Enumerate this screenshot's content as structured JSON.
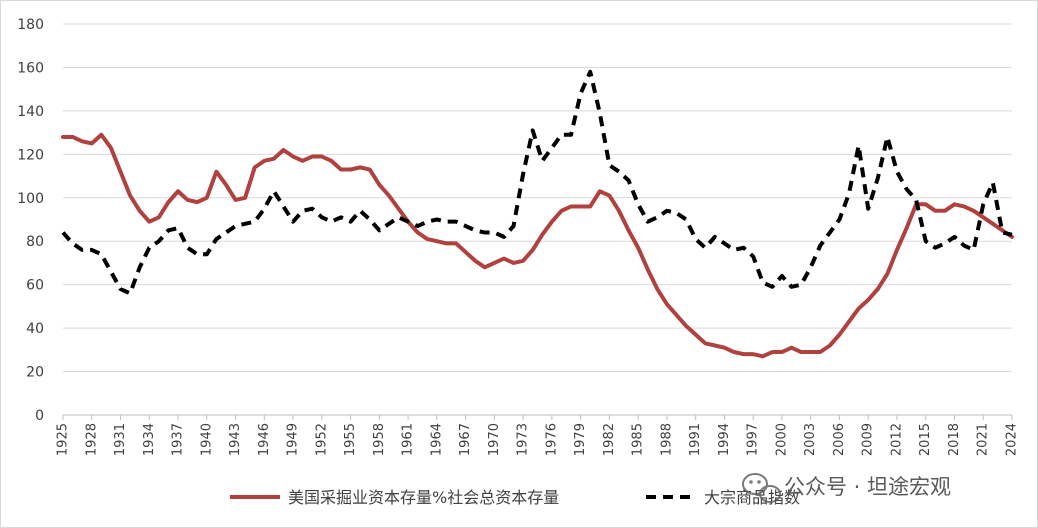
{
  "chart_data": {
    "type": "line",
    "title": "",
    "xlabel": "",
    "ylabel": "",
    "ylim": [
      0,
      180
    ],
    "yticks": [
      0,
      20,
      40,
      60,
      80,
      100,
      120,
      140,
      160,
      180
    ],
    "xlim": [
      1925,
      2024
    ],
    "xticks": [
      1925,
      1928,
      1931,
      1934,
      1937,
      1940,
      1943,
      1946,
      1949,
      1952,
      1955,
      1958,
      1961,
      1964,
      1967,
      1970,
      1973,
      1976,
      1979,
      1982,
      1985,
      1988,
      1991,
      1994,
      1997,
      2000,
      2003,
      2006,
      2009,
      2012,
      2015,
      2018,
      2021,
      2024
    ],
    "grid": "horizontal",
    "legend_position": "bottom",
    "series": [
      {
        "name": "美国采掘业资本存量%社会总资本存量",
        "color": "#b0413e",
        "style": "solid",
        "points": [
          [
            1925,
            128
          ],
          [
            1926,
            128
          ],
          [
            1927,
            126
          ],
          [
            1928,
            125
          ],
          [
            1929,
            129
          ],
          [
            1930,
            123
          ],
          [
            1931,
            112
          ],
          [
            1932,
            101
          ],
          [
            1933,
            94
          ],
          [
            1934,
            89
          ],
          [
            1935,
            91
          ],
          [
            1936,
            98
          ],
          [
            1937,
            103
          ],
          [
            1938,
            99
          ],
          [
            1939,
            98
          ],
          [
            1940,
            100
          ],
          [
            1941,
            112
          ],
          [
            1942,
            106
          ],
          [
            1943,
            99
          ],
          [
            1944,
            100
          ],
          [
            1945,
            114
          ],
          [
            1946,
            117
          ],
          [
            1947,
            118
          ],
          [
            1948,
            122
          ],
          [
            1949,
            119
          ],
          [
            1950,
            117
          ],
          [
            1951,
            119
          ],
          [
            1952,
            119
          ],
          [
            1953,
            117
          ],
          [
            1954,
            113
          ],
          [
            1955,
            113
          ],
          [
            1956,
            114
          ],
          [
            1957,
            113
          ],
          [
            1958,
            106
          ],
          [
            1959,
            101
          ],
          [
            1960,
            95
          ],
          [
            1961,
            89
          ],
          [
            1962,
            84
          ],
          [
            1963,
            81
          ],
          [
            1964,
            80
          ],
          [
            1965,
            79
          ],
          [
            1966,
            79
          ],
          [
            1967,
            75
          ],
          [
            1968,
            71
          ],
          [
            1969,
            68
          ],
          [
            1970,
            70
          ],
          [
            1971,
            72
          ],
          [
            1972,
            70
          ],
          [
            1973,
            71
          ],
          [
            1974,
            76
          ],
          [
            1975,
            83
          ],
          [
            1976,
            89
          ],
          [
            1977,
            94
          ],
          [
            1978,
            96
          ],
          [
            1979,
            96
          ],
          [
            1980,
            96
          ],
          [
            1981,
            103
          ],
          [
            1982,
            101
          ],
          [
            1983,
            94
          ],
          [
            1984,
            85
          ],
          [
            1985,
            77
          ],
          [
            1986,
            67
          ],
          [
            1987,
            58
          ],
          [
            1988,
            51
          ],
          [
            1989,
            46
          ],
          [
            1990,
            41
          ],
          [
            1991,
            37
          ],
          [
            1992,
            33
          ],
          [
            1993,
            32
          ],
          [
            1994,
            31
          ],
          [
            1995,
            29
          ],
          [
            1996,
            28
          ],
          [
            1997,
            28
          ],
          [
            1998,
            27
          ],
          [
            1999,
            29
          ],
          [
            2000,
            29
          ],
          [
            2001,
            31
          ],
          [
            2002,
            29
          ],
          [
            2003,
            29
          ],
          [
            2004,
            29
          ],
          [
            2005,
            32
          ],
          [
            2006,
            37
          ],
          [
            2007,
            43
          ],
          [
            2008,
            49
          ],
          [
            2009,
            53
          ],
          [
            2010,
            58
          ],
          [
            2011,
            65
          ],
          [
            2012,
            76
          ],
          [
            2013,
            86
          ],
          [
            2014,
            97
          ],
          [
            2015,
            97
          ],
          [
            2016,
            94
          ],
          [
            2017,
            94
          ],
          [
            2018,
            97
          ],
          [
            2019,
            96
          ],
          [
            2020,
            94
          ],
          [
            2021,
            91
          ],
          [
            2022,
            88
          ],
          [
            2023,
            85
          ],
          [
            2024,
            82
          ]
        ]
      },
      {
        "name": "大宗商品指数",
        "color": "#000000",
        "style": "dashed",
        "points": [
          [
            1925,
            84
          ],
          [
            1926,
            79
          ],
          [
            1927,
            76
          ],
          [
            1928,
            76
          ],
          [
            1929,
            74
          ],
          [
            1930,
            66
          ],
          [
            1931,
            58
          ],
          [
            1932,
            56
          ],
          [
            1933,
            68
          ],
          [
            1934,
            77
          ],
          [
            1935,
            80
          ],
          [
            1936,
            85
          ],
          [
            1937,
            86
          ],
          [
            1938,
            77
          ],
          [
            1939,
            74
          ],
          [
            1940,
            74
          ],
          [
            1941,
            81
          ],
          [
            1942,
            84
          ],
          [
            1943,
            87
          ],
          [
            1944,
            88
          ],
          [
            1945,
            89
          ],
          [
            1946,
            95
          ],
          [
            1947,
            103
          ],
          [
            1948,
            96
          ],
          [
            1949,
            89
          ],
          [
            1950,
            94
          ],
          [
            1951,
            95
          ],
          [
            1952,
            91
          ],
          [
            1953,
            89
          ],
          [
            1954,
            91
          ],
          [
            1955,
            89
          ],
          [
            1956,
            94
          ],
          [
            1957,
            90
          ],
          [
            1958,
            85
          ],
          [
            1959,
            88
          ],
          [
            1960,
            91
          ],
          [
            1961,
            89
          ],
          [
            1962,
            87
          ],
          [
            1963,
            89
          ],
          [
            1964,
            90
          ],
          [
            1965,
            89
          ],
          [
            1966,
            89
          ],
          [
            1967,
            87
          ],
          [
            1968,
            85
          ],
          [
            1969,
            84
          ],
          [
            1970,
            84
          ],
          [
            1971,
            82
          ],
          [
            1972,
            87
          ],
          [
            1973,
            111
          ],
          [
            1974,
            131
          ],
          [
            1975,
            117
          ],
          [
            1976,
            123
          ],
          [
            1977,
            129
          ],
          [
            1978,
            129
          ],
          [
            1979,
            148
          ],
          [
            1980,
            158
          ],
          [
            1981,
            139
          ],
          [
            1982,
            115
          ],
          [
            1983,
            112
          ],
          [
            1984,
            108
          ],
          [
            1985,
            97
          ],
          [
            1986,
            89
          ],
          [
            1987,
            91
          ],
          [
            1988,
            94
          ],
          [
            1989,
            93
          ],
          [
            1990,
            90
          ],
          [
            1991,
            81
          ],
          [
            1992,
            77
          ],
          [
            1993,
            82
          ],
          [
            1994,
            79
          ],
          [
            1995,
            76
          ],
          [
            1996,
            77
          ],
          [
            1997,
            73
          ],
          [
            1998,
            61
          ],
          [
            1999,
            59
          ],
          [
            2000,
            64
          ],
          [
            2001,
            59
          ],
          [
            2002,
            60
          ],
          [
            2003,
            68
          ],
          [
            2004,
            78
          ],
          [
            2005,
            84
          ],
          [
            2006,
            90
          ],
          [
            2007,
            102
          ],
          [
            2008,
            124
          ],
          [
            2009,
            95
          ],
          [
            2010,
            109
          ],
          [
            2011,
            128
          ],
          [
            2012,
            112
          ],
          [
            2013,
            104
          ],
          [
            2014,
            99
          ],
          [
            2015,
            80
          ],
          [
            2016,
            77
          ],
          [
            2017,
            79
          ],
          [
            2018,
            82
          ],
          [
            2019,
            78
          ],
          [
            2020,
            76
          ],
          [
            2021,
            97
          ],
          [
            2022,
            107
          ],
          [
            2023,
            84
          ],
          [
            2024,
            83
          ]
        ]
      }
    ]
  },
  "watermark": {
    "text": "公众号 · 坦途宏观",
    "icon": "wechat-icon",
    "color": "#5a5a5a"
  }
}
